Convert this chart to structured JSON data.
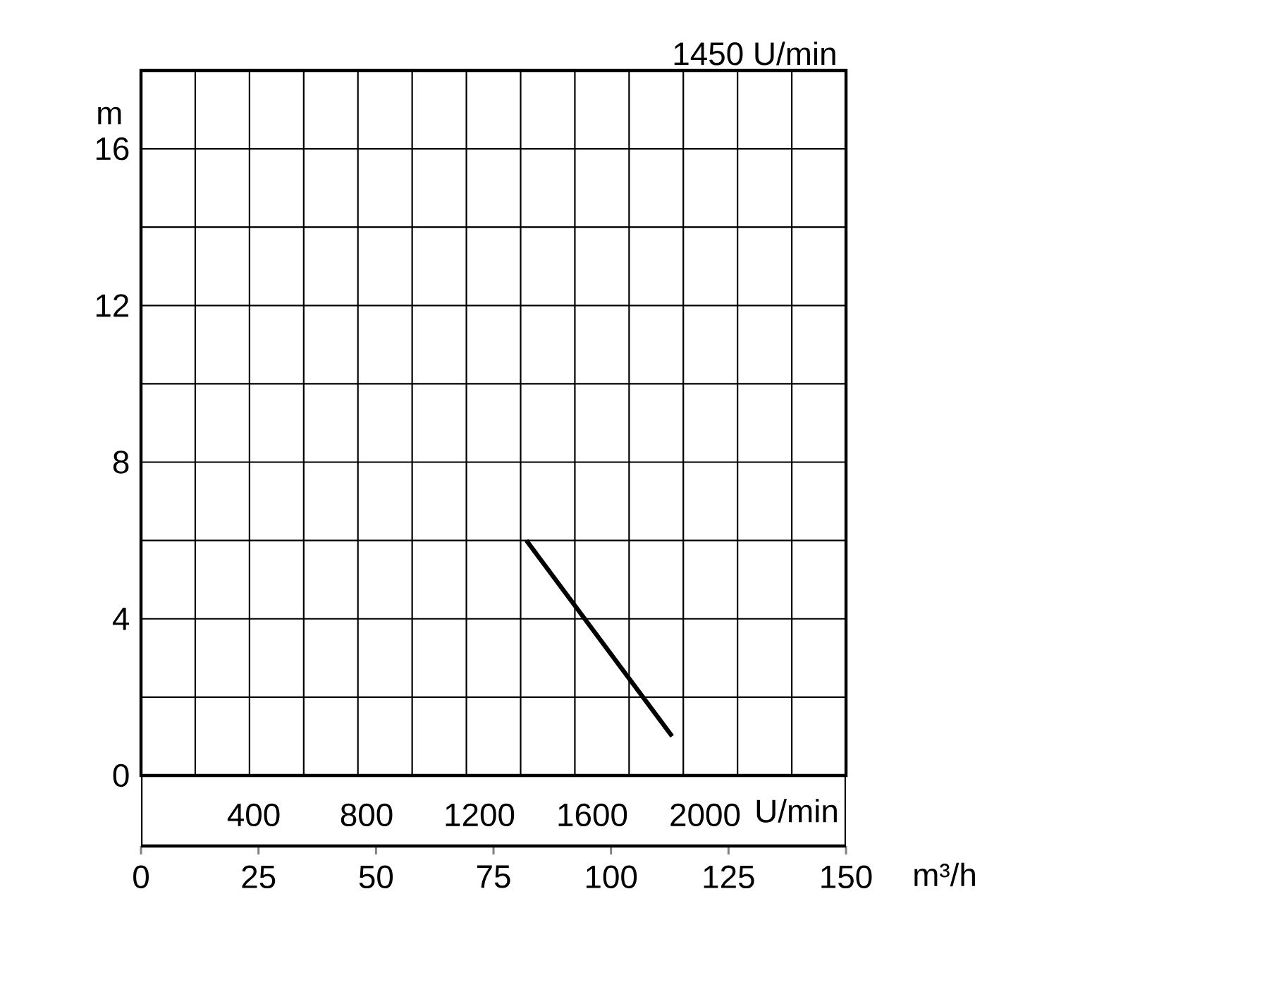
{
  "chart_data": {
    "type": "line",
    "xlim": [
      0,
      150
    ],
    "xticks": [
      0,
      {
        "value": 11.54,
        "label": null
      },
      {
        "value": 23.08,
        "label": null
      },
      25,
      {
        "value": 34.62,
        "label": null
      },
      {
        "value": 46.15,
        "label": null
      },
      50,
      {
        "value": 57.69,
        "label": null
      },
      {
        "value": 69.23,
        "label": null
      },
      75,
      {
        "value": 80.77,
        "label": null
      },
      {
        "value": 92.31,
        "label": null
      },
      100,
      {
        "value": 103.85,
        "label": null
      },
      {
        "value": 115.38,
        "label": null
      },
      125,
      {
        "value": 126.92,
        "label": null
      },
      {
        "value": 138.46,
        "label": null
      },
      150
    ],
    "xlabel": "m³/h",
    "x2lim": [
      0,
      2500
    ],
    "x2ticks": [
      400,
      800,
      1200,
      1600,
      2000
    ],
    "x2label": "U/min",
    "ylim": [
      0,
      18
    ],
    "yticks": [
      0,
      {
        "value": 2,
        "label": null
      },
      4,
      {
        "value": 6,
        "label": null
      },
      8,
      {
        "value": 10,
        "label": null
      },
      12,
      {
        "value": 14,
        "label": null
      },
      16
    ],
    "ylabel": "m",
    "grid": true,
    "annotations": [
      "1450 U/min"
    ],
    "series": [
      {
        "color": "#000000",
        "x": [
          82,
          113
        ],
        "values": [
          6.0,
          1.0
        ]
      }
    ]
  }
}
